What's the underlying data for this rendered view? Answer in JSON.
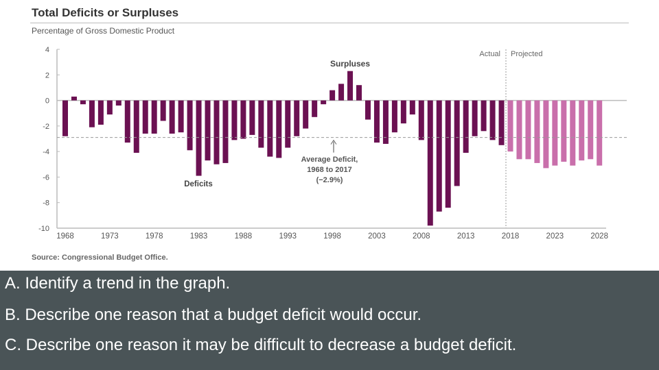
{
  "chart_data": {
    "type": "bar",
    "title": "Total Deficits or Surpluses",
    "ylabel": "Percentage of Gross Domestic Product",
    "source": "Source: Congressional Budget Office.",
    "ylim": [
      -10,
      4
    ],
    "yticks": [
      4,
      2,
      0,
      -2,
      -4,
      -6,
      -8,
      -10
    ],
    "xticks": [
      1968,
      1973,
      1978,
      1983,
      1988,
      1993,
      1998,
      2003,
      2008,
      2013,
      2018,
      2023,
      2028
    ],
    "series": [
      {
        "name": "Actual",
        "color": "#6b1152",
        "x_start": 1968,
        "values": [
          -2.8,
          0.3,
          -0.3,
          -2.1,
          -1.9,
          -1.1,
          -0.4,
          -3.3,
          -4.1,
          -2.6,
          -2.6,
          -1.6,
          -2.6,
          -2.5,
          -3.9,
          -5.9,
          -4.7,
          -5.0,
          -4.9,
          -3.1,
          -3.0,
          -2.7,
          -3.7,
          -4.4,
          -4.5,
          -3.7,
          -2.8,
          -2.2,
          -1.3,
          -0.3,
          0.8,
          1.3,
          2.3,
          1.2,
          -1.5,
          -3.3,
          -3.4,
          -2.5,
          -1.8,
          -1.1,
          -3.1,
          -9.8,
          -8.7,
          -8.4,
          -6.7,
          -4.1,
          -2.8,
          -2.4,
          -3.1,
          -3.5
        ]
      },
      {
        "name": "Projected",
        "color": "#c96fab",
        "x_start": 2018,
        "values": [
          -4.0,
          -4.6,
          -4.6,
          -4.9,
          -5.3,
          -5.1,
          -4.8,
          -5.1,
          -4.7,
          -4.6,
          -5.1
        ]
      }
    ],
    "average_line": {
      "value": -2.9,
      "label_lines": [
        "Average Deficit,",
        "1968 to 2017",
        "(−2.9%)"
      ]
    },
    "annotations": {
      "surpluses": "Surpluses",
      "deficits": "Deficits",
      "actual": "Actual",
      "projected": "Projected"
    },
    "grid": false
  },
  "questions": [
    "A. Identify a trend in the graph.",
    "B. Describe one reason that a budget deficit would occur.",
    "C. Describe one reason it may be difficult to decrease a budget deficit."
  ]
}
